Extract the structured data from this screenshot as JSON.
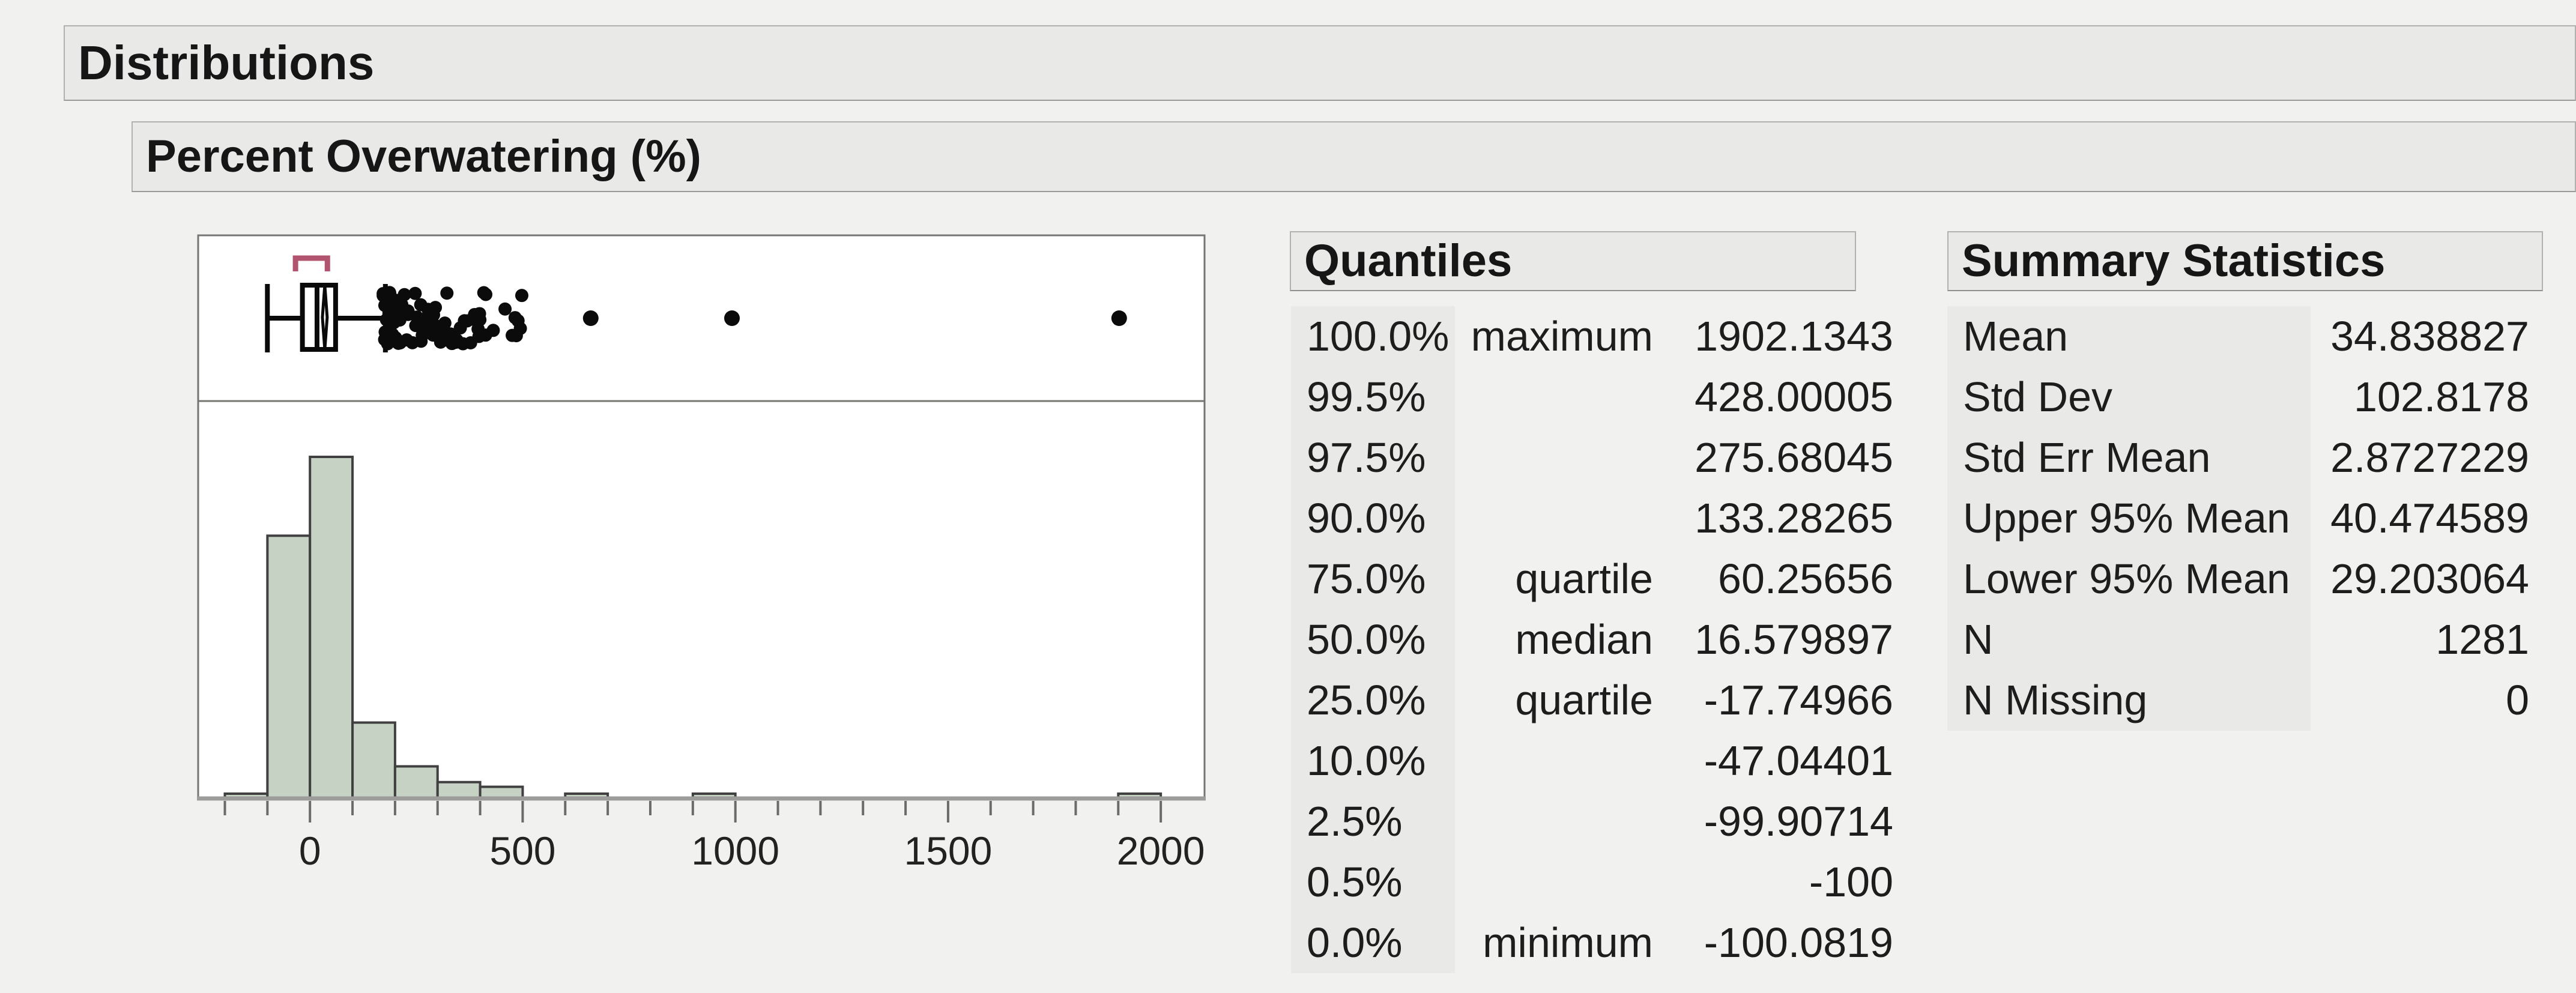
{
  "report": {
    "title": "Distributions",
    "variable": "Percent Overwatering (%)"
  },
  "quantiles": {
    "title": "Quantiles",
    "rows": [
      {
        "probability": "100.0%",
        "label": "maximum",
        "value": "1902.1343"
      },
      {
        "probability": "99.5%",
        "label": "",
        "value": "428.00005"
      },
      {
        "probability": "97.5%",
        "label": "",
        "value": "275.68045"
      },
      {
        "probability": "90.0%",
        "label": "",
        "value": "133.28265"
      },
      {
        "probability": "75.0%",
        "label": "quartile",
        "value": "60.25656"
      },
      {
        "probability": "50.0%",
        "label": "median",
        "value": "16.579897"
      },
      {
        "probability": "25.0%",
        "label": "quartile",
        "value": "-17.74966"
      },
      {
        "probability": "10.0%",
        "label": "",
        "value": "-47.04401"
      },
      {
        "probability": "2.5%",
        "label": "",
        "value": "-99.90714"
      },
      {
        "probability": "0.5%",
        "label": "",
        "value": "-100"
      },
      {
        "probability": "0.0%",
        "label": "minimum",
        "value": "-100.0819"
      }
    ]
  },
  "summary": {
    "title": "Summary Statistics",
    "rows": [
      {
        "label": "Mean",
        "value": "34.838827"
      },
      {
        "label": "Std Dev",
        "value": "102.8178"
      },
      {
        "label": "Std Err Mean",
        "value": "2.8727229"
      },
      {
        "label": "Upper 95% Mean",
        "value": "40.474589"
      },
      {
        "label": "Lower 95% Mean",
        "value": "29.203064"
      },
      {
        "label": "N",
        "value": "1281"
      },
      {
        "label": "N Missing",
        "value": "0"
      }
    ]
  },
  "chart_data": {
    "type": "histogram+boxplot",
    "title": "Percent Overwatering (%)",
    "xlabel": "",
    "ylabel": "",
    "grid": false,
    "legend": "none",
    "axis": {
      "min": -260,
      "max": 2100,
      "major_ticks": [
        0,
        500,
        1000,
        1500,
        2000
      ],
      "tick_labels": [
        "0",
        "500",
        "1000",
        "1500",
        "2000"
      ],
      "minor_tick_step": 100
    },
    "histogram": {
      "bin_start": -200,
      "bin_width": 100,
      "counts": [
        4,
        450,
        585,
        130,
        55,
        28,
        20,
        0,
        3,
        0,
        0,
        3,
        0,
        0,
        0,
        0,
        0,
        0,
        0,
        0,
        0,
        3
      ],
      "total_n": 1281
    },
    "boxplot": {
      "minimum": -100.0819,
      "q1": -17.74966,
      "median": 16.579897,
      "q3": 60.25656,
      "upper_whisker": 177.3,
      "mean": 34.838827,
      "mean_ci_lower": 29.203064,
      "mean_ci_upper": 40.474589,
      "shortest_half": [
        -34,
        41
      ],
      "outlier_cluster": {
        "min": 172,
        "max": 508,
        "count": 88
      },
      "isolated_outliers": [
        660,
        992,
        1902.13
      ]
    },
    "colors": {
      "bar_fill": "#c6d2c4",
      "bar_border": "#404040",
      "box_stroke": "#0a0a0a",
      "bracket": "#b2536f",
      "axis_line": "#9c9c9a",
      "tick": "#6b6b6b",
      "panel_border": "#757571",
      "panel_fill": "#ffffff"
    }
  }
}
